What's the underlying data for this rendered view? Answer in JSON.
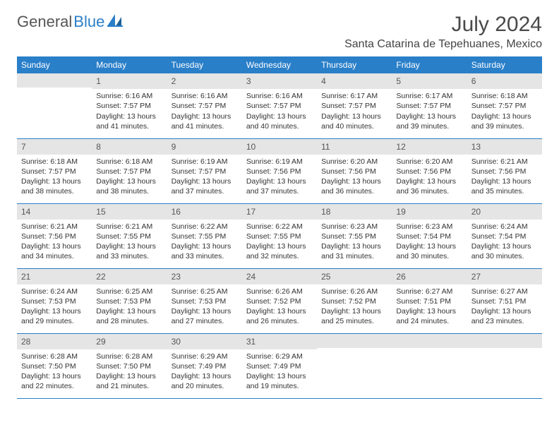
{
  "brand": {
    "name_a": "General",
    "name_b": "Blue"
  },
  "title": "July 2024",
  "location": "Santa Catarina de Tepehuanes, Mexico",
  "colors": {
    "header_bg": "#2a7fc9",
    "header_fg": "#ffffff",
    "daynum_bg": "#e5e5e5",
    "border": "#2a7fc9",
    "text": "#333333",
    "brand_blue": "#2a7fc9"
  },
  "day_headers": [
    "Sunday",
    "Monday",
    "Tuesday",
    "Wednesday",
    "Thursday",
    "Friday",
    "Saturday"
  ],
  "weeks": [
    [
      {
        "num": "",
        "sunrise": "",
        "sunset": "",
        "daylight": ""
      },
      {
        "num": "1",
        "sunrise": "Sunrise: 6:16 AM",
        "sunset": "Sunset: 7:57 PM",
        "daylight": "Daylight: 13 hours and 41 minutes."
      },
      {
        "num": "2",
        "sunrise": "Sunrise: 6:16 AM",
        "sunset": "Sunset: 7:57 PM",
        "daylight": "Daylight: 13 hours and 41 minutes."
      },
      {
        "num": "3",
        "sunrise": "Sunrise: 6:16 AM",
        "sunset": "Sunset: 7:57 PM",
        "daylight": "Daylight: 13 hours and 40 minutes."
      },
      {
        "num": "4",
        "sunrise": "Sunrise: 6:17 AM",
        "sunset": "Sunset: 7:57 PM",
        "daylight": "Daylight: 13 hours and 40 minutes."
      },
      {
        "num": "5",
        "sunrise": "Sunrise: 6:17 AM",
        "sunset": "Sunset: 7:57 PM",
        "daylight": "Daylight: 13 hours and 39 minutes."
      },
      {
        "num": "6",
        "sunrise": "Sunrise: 6:18 AM",
        "sunset": "Sunset: 7:57 PM",
        "daylight": "Daylight: 13 hours and 39 minutes."
      }
    ],
    [
      {
        "num": "7",
        "sunrise": "Sunrise: 6:18 AM",
        "sunset": "Sunset: 7:57 PM",
        "daylight": "Daylight: 13 hours and 38 minutes."
      },
      {
        "num": "8",
        "sunrise": "Sunrise: 6:18 AM",
        "sunset": "Sunset: 7:57 PM",
        "daylight": "Daylight: 13 hours and 38 minutes."
      },
      {
        "num": "9",
        "sunrise": "Sunrise: 6:19 AM",
        "sunset": "Sunset: 7:57 PM",
        "daylight": "Daylight: 13 hours and 37 minutes."
      },
      {
        "num": "10",
        "sunrise": "Sunrise: 6:19 AM",
        "sunset": "Sunset: 7:56 PM",
        "daylight": "Daylight: 13 hours and 37 minutes."
      },
      {
        "num": "11",
        "sunrise": "Sunrise: 6:20 AM",
        "sunset": "Sunset: 7:56 PM",
        "daylight": "Daylight: 13 hours and 36 minutes."
      },
      {
        "num": "12",
        "sunrise": "Sunrise: 6:20 AM",
        "sunset": "Sunset: 7:56 PM",
        "daylight": "Daylight: 13 hours and 36 minutes."
      },
      {
        "num": "13",
        "sunrise": "Sunrise: 6:21 AM",
        "sunset": "Sunset: 7:56 PM",
        "daylight": "Daylight: 13 hours and 35 minutes."
      }
    ],
    [
      {
        "num": "14",
        "sunrise": "Sunrise: 6:21 AM",
        "sunset": "Sunset: 7:56 PM",
        "daylight": "Daylight: 13 hours and 34 minutes."
      },
      {
        "num": "15",
        "sunrise": "Sunrise: 6:21 AM",
        "sunset": "Sunset: 7:55 PM",
        "daylight": "Daylight: 13 hours and 33 minutes."
      },
      {
        "num": "16",
        "sunrise": "Sunrise: 6:22 AM",
        "sunset": "Sunset: 7:55 PM",
        "daylight": "Daylight: 13 hours and 33 minutes."
      },
      {
        "num": "17",
        "sunrise": "Sunrise: 6:22 AM",
        "sunset": "Sunset: 7:55 PM",
        "daylight": "Daylight: 13 hours and 32 minutes."
      },
      {
        "num": "18",
        "sunrise": "Sunrise: 6:23 AM",
        "sunset": "Sunset: 7:55 PM",
        "daylight": "Daylight: 13 hours and 31 minutes."
      },
      {
        "num": "19",
        "sunrise": "Sunrise: 6:23 AM",
        "sunset": "Sunset: 7:54 PM",
        "daylight": "Daylight: 13 hours and 30 minutes."
      },
      {
        "num": "20",
        "sunrise": "Sunrise: 6:24 AM",
        "sunset": "Sunset: 7:54 PM",
        "daylight": "Daylight: 13 hours and 30 minutes."
      }
    ],
    [
      {
        "num": "21",
        "sunrise": "Sunrise: 6:24 AM",
        "sunset": "Sunset: 7:53 PM",
        "daylight": "Daylight: 13 hours and 29 minutes."
      },
      {
        "num": "22",
        "sunrise": "Sunrise: 6:25 AM",
        "sunset": "Sunset: 7:53 PM",
        "daylight": "Daylight: 13 hours and 28 minutes."
      },
      {
        "num": "23",
        "sunrise": "Sunrise: 6:25 AM",
        "sunset": "Sunset: 7:53 PM",
        "daylight": "Daylight: 13 hours and 27 minutes."
      },
      {
        "num": "24",
        "sunrise": "Sunrise: 6:26 AM",
        "sunset": "Sunset: 7:52 PM",
        "daylight": "Daylight: 13 hours and 26 minutes."
      },
      {
        "num": "25",
        "sunrise": "Sunrise: 6:26 AM",
        "sunset": "Sunset: 7:52 PM",
        "daylight": "Daylight: 13 hours and 25 minutes."
      },
      {
        "num": "26",
        "sunrise": "Sunrise: 6:27 AM",
        "sunset": "Sunset: 7:51 PM",
        "daylight": "Daylight: 13 hours and 24 minutes."
      },
      {
        "num": "27",
        "sunrise": "Sunrise: 6:27 AM",
        "sunset": "Sunset: 7:51 PM",
        "daylight": "Daylight: 13 hours and 23 minutes."
      }
    ],
    [
      {
        "num": "28",
        "sunrise": "Sunrise: 6:28 AM",
        "sunset": "Sunset: 7:50 PM",
        "daylight": "Daylight: 13 hours and 22 minutes."
      },
      {
        "num": "29",
        "sunrise": "Sunrise: 6:28 AM",
        "sunset": "Sunset: 7:50 PM",
        "daylight": "Daylight: 13 hours and 21 minutes."
      },
      {
        "num": "30",
        "sunrise": "Sunrise: 6:29 AM",
        "sunset": "Sunset: 7:49 PM",
        "daylight": "Daylight: 13 hours and 20 minutes."
      },
      {
        "num": "31",
        "sunrise": "Sunrise: 6:29 AM",
        "sunset": "Sunset: 7:49 PM",
        "daylight": "Daylight: 13 hours and 19 minutes."
      },
      {
        "num": "",
        "sunrise": "",
        "sunset": "",
        "daylight": ""
      },
      {
        "num": "",
        "sunrise": "",
        "sunset": "",
        "daylight": ""
      },
      {
        "num": "",
        "sunrise": "",
        "sunset": "",
        "daylight": ""
      }
    ]
  ]
}
